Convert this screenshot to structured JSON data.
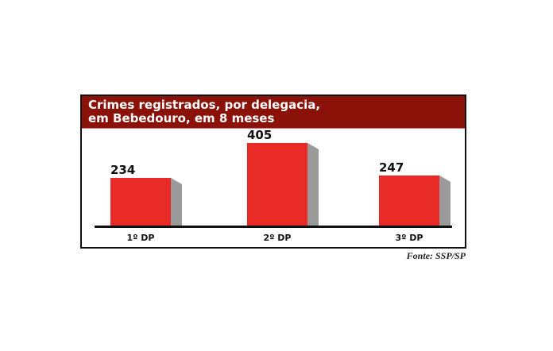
{
  "title_lines": [
    "Crimes registrados, por delegacia,",
    "em Bebedouro, em 8 meses"
  ],
  "source": "Fonte: SSP/SP",
  "colors": {
    "header": "#8b1209",
    "bar": "#e92b27",
    "bar_side": "#9a9a9a"
  },
  "chart_data": {
    "type": "bar",
    "title": "Crimes registrados, por delegacia, em Bebedouro, em 8 meses",
    "categories": [
      "1º DP",
      "2º DP",
      "3º DP"
    ],
    "values": [
      234,
      405,
      247
    ],
    "xlabel": "",
    "ylabel": "",
    "grid": false,
    "legend": "none",
    "data_labels": true,
    "source": "Fonte: SSP/SP"
  }
}
